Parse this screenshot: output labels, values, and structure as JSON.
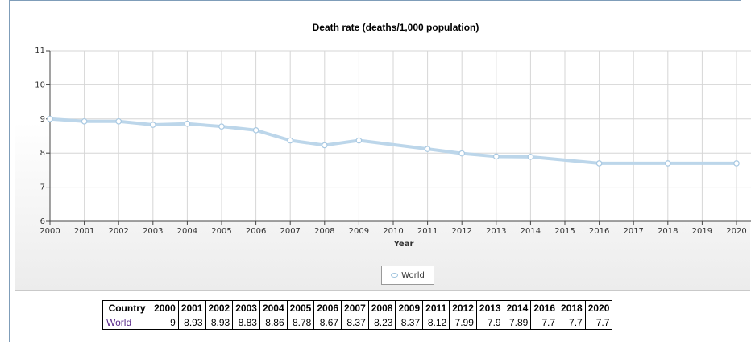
{
  "chart_data": {
    "type": "line",
    "title": "Death rate (deaths/1,000 population)",
    "xlabel": "Year",
    "ylabel": "",
    "x": [
      2000,
      2001,
      2002,
      2003,
      2004,
      2005,
      2006,
      2007,
      2008,
      2009,
      2011,
      2012,
      2013,
      2014,
      2016,
      2018,
      2020
    ],
    "x_ticks": [
      "2000",
      "2001",
      "2002",
      "2003",
      "2004",
      "2005",
      "2006",
      "2007",
      "2008",
      "2009",
      "2010",
      "2011",
      "2012",
      "2013",
      "2014",
      "2015",
      "2016",
      "2017",
      "2018",
      "2019",
      "2020"
    ],
    "y_ticks": [
      "6",
      "7",
      "8",
      "9",
      "10",
      "11"
    ],
    "xlim": [
      2000,
      2020
    ],
    "ylim": [
      6,
      11
    ],
    "grid": true,
    "legend_position": "bottom-center",
    "series": [
      {
        "name": "World",
        "color": "#bcd6ea",
        "values": [
          9,
          8.93,
          8.93,
          8.83,
          8.86,
          8.78,
          8.67,
          8.37,
          8.23,
          8.37,
          8.12,
          7.99,
          7.9,
          7.89,
          7.7,
          7.7,
          7.7
        ]
      }
    ]
  },
  "table": {
    "header_label": "Country",
    "years": [
      "2000",
      "2001",
      "2002",
      "2003",
      "2004",
      "2005",
      "2006",
      "2007",
      "2008",
      "2009",
      "2011",
      "2012",
      "2013",
      "2014",
      "2016",
      "2018",
      "2020"
    ],
    "rows": [
      {
        "country": "World",
        "values": [
          "9",
          "8.93",
          "8.93",
          "8.83",
          "8.86",
          "8.78",
          "8.67",
          "8.37",
          "8.23",
          "8.37",
          "8.12",
          "7.99",
          "7.9",
          "7.89",
          "7.7",
          "7.7",
          "7.7"
        ]
      }
    ]
  }
}
